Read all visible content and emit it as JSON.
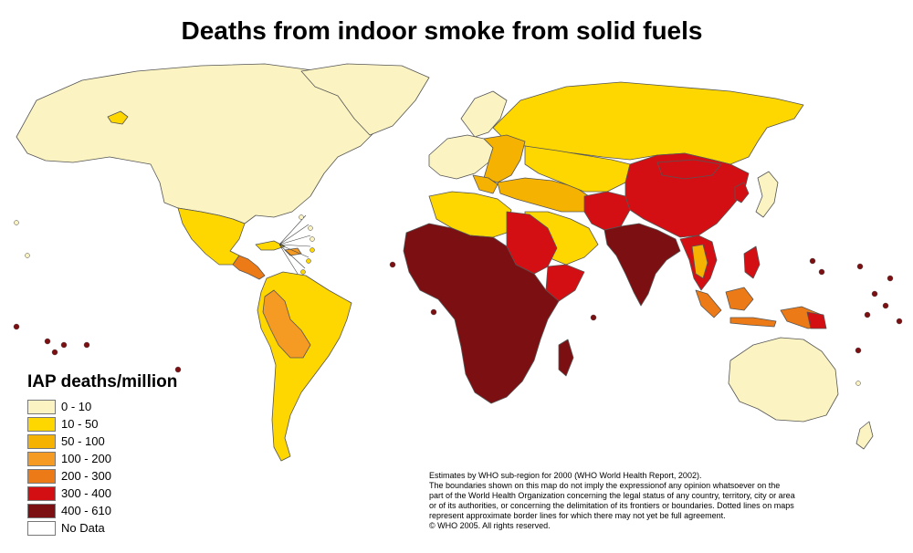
{
  "title": "Deaths from indoor smoke from solid fuels",
  "legend": {
    "title": "IAP deaths/million",
    "items": [
      {
        "label": "0 - 10",
        "color": "#fbf4c2"
      },
      {
        "label": "10 - 50",
        "color": "#ffd700"
      },
      {
        "label": "50 - 100",
        "color": "#f6b200"
      },
      {
        "label": "100 - 200",
        "color": "#f59a22"
      },
      {
        "label": "200 - 300",
        "color": "#ec7a16"
      },
      {
        "label": "300 - 400",
        "color": "#d40f14"
      },
      {
        "label": "400 - 610",
        "color": "#7c0f12"
      },
      {
        "label": "No Data",
        "color": "#ffffff"
      }
    ]
  },
  "notes": [
    "Estimates by WHO sub-region for 2000 (WHO World Health Report, 2002).",
    "The boundaries shown on this map do not imply the expressionof any opinion whatsoever on the",
    " part of the World Health Organization concerning the legal status of any country, territory, city or area",
    "or of its authorities, or concerning the delimitation of its frontiers or boundaries.  Dotted lines on maps",
    "represent approximate border lines for which there may not yet be full agreement.",
    "© WHO 2005. All rights reserved."
  ],
  "colors": {
    "border": "#555555"
  }
}
